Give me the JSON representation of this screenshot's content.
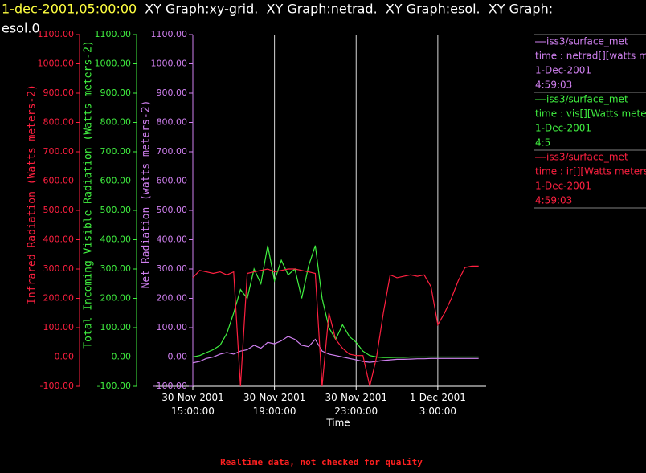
{
  "chart_data": {
    "type": "line",
    "timestamp": "1-dec-2001,05:00:00",
    "title": "XY Graph:xy-grid.  XY Graph:netrad.  XY Graph:esol.  XY Graph:",
    "title_line2": "esol.0",
    "footer": "Realtime data, not checked for quality",
    "x_label": "Time",
    "xlim": [
      "30-Nov-2001 15:00:00",
      "1-Dec-2001 05:22:00"
    ],
    "xticks": [
      "30-Nov-2001 15:00:00",
      "30-Nov-2001 19:00:00",
      "30-Nov-2001 23:00:00",
      "1-Dec-2001 3:00:00"
    ],
    "grid": true,
    "y_axes": [
      {
        "label": "Infrared Radiation (Watts meters-2)",
        "color": "#ff2040",
        "lim": [
          -100,
          1100
        ],
        "ticks": [
          {
            "value": -100,
            "label": "-100.00"
          },
          {
            "value": 0,
            "label": "0.00"
          },
          {
            "value": 100,
            "label": "100.00"
          },
          {
            "value": 200,
            "label": "200.00"
          },
          {
            "value": 300,
            "label": "300.00"
          },
          {
            "value": 400,
            "label": "400.00"
          },
          {
            "value": 500,
            "label": "500.00"
          },
          {
            "value": 600,
            "label": "600.00"
          },
          {
            "value": 700,
            "label": "700.00"
          },
          {
            "value": 800,
            "label": "800.00"
          },
          {
            "value": 900,
            "label": "900.00"
          },
          {
            "value": 1000,
            "label": "1000.00"
          },
          {
            "value": 1100,
            "label": "1100.00"
          }
        ]
      },
      {
        "label": "Total Incoming Visible Radiation (Watts meters-2)",
        "color": "#40f040",
        "lim": [
          -100,
          1100
        ],
        "ticks": [
          {
            "value": -100,
            "label": "-100.00"
          },
          {
            "value": 0,
            "label": "0.00"
          },
          {
            "value": 100,
            "label": "100.00"
          },
          {
            "value": 200,
            "label": "200.00"
          },
          {
            "value": 300,
            "label": "300.00"
          },
          {
            "value": 400,
            "label": "400.00"
          },
          {
            "value": 500,
            "label": "500.00"
          },
          {
            "value": 600,
            "label": "600.00"
          },
          {
            "value": 700,
            "label": "700.00"
          },
          {
            "value": 800,
            "label": "800.00"
          },
          {
            "value": 900,
            "label": "900.00"
          },
          {
            "value": 1000,
            "label": "1000.00"
          },
          {
            "value": 1100,
            "label": "1100.00"
          }
        ]
      },
      {
        "label": "Net Radiation (watts meters-2)",
        "color": "#d080f0",
        "lim": [
          -100,
          1100
        ],
        "ticks": [
          {
            "value": -100,
            "label": "-100.00"
          },
          {
            "value": 0,
            "label": "0.00"
          },
          {
            "value": 100,
            "label": "100.00"
          },
          {
            "value": 200,
            "label": "200.00"
          },
          {
            "value": 300,
            "label": "300.00"
          },
          {
            "value": 400,
            "label": "400.00"
          },
          {
            "value": 500,
            "label": "500.00"
          },
          {
            "value": 600,
            "label": "600.00"
          },
          {
            "value": 700,
            "label": "700.00"
          },
          {
            "value": 800,
            "label": "800.00"
          },
          {
            "value": 900,
            "label": "900.00"
          },
          {
            "value": 1000,
            "label": "1000.00"
          },
          {
            "value": 1100,
            "label": "1100.00"
          }
        ]
      }
    ],
    "x": [
      "30-Nov-2001 15:00",
      "30-Nov-2001 15:20",
      "30-Nov-2001 15:40",
      "30-Nov-2001 16:00",
      "30-Nov-2001 16:20",
      "30-Nov-2001 16:40",
      "30-Nov-2001 17:00",
      "30-Nov-2001 17:20",
      "30-Nov-2001 17:40",
      "30-Nov-2001 18:00",
      "30-Nov-2001 18:20",
      "30-Nov-2001 18:40",
      "30-Nov-2001 19:00",
      "30-Nov-2001 19:20",
      "30-Nov-2001 19:40",
      "30-Nov-2001 20:00",
      "30-Nov-2001 20:20",
      "30-Nov-2001 20:40",
      "30-Nov-2001 21:00",
      "30-Nov-2001 21:20",
      "30-Nov-2001 21:40",
      "30-Nov-2001 22:00",
      "30-Nov-2001 22:20",
      "30-Nov-2001 22:40",
      "30-Nov-2001 23:00",
      "30-Nov-2001 23:20",
      "30-Nov-2001 23:40",
      "1-Dec-2001 0:00",
      "1-Dec-2001 0:20",
      "1-Dec-2001 0:40",
      "1-Dec-2001 1:00",
      "1-Dec-2001 1:20",
      "1-Dec-2001 1:40",
      "1-Dec-2001 2:00",
      "1-Dec-2001 2:20",
      "1-Dec-2001 2:40",
      "1-Dec-2001 3:00",
      "1-Dec-2001 3:20",
      "1-Dec-2001 3:40",
      "1-Dec-2001 4:00",
      "1-Dec-2001 4:20",
      "1-Dec-2001 4:40",
      "1-Dec-2001 5:00"
    ],
    "series": [
      {
        "name": "iss3/surface_met",
        "legend_detail": [
          "time : netrad[][watts me",
          "1-Dec-2001",
          "4:59:03"
        ],
        "color": "#d080f0",
        "axis": 2,
        "values": [
          -20,
          -15,
          -5,
          0,
          10,
          15,
          10,
          20,
          25,
          40,
          30,
          50,
          45,
          55,
          70,
          60,
          40,
          35,
          60,
          20,
          10,
          5,
          0,
          -5,
          -10,
          -15,
          -18,
          -15,
          -12,
          -10,
          -8,
          -8,
          -7,
          -6,
          -6,
          -5,
          -5,
          -5,
          -5,
          -5,
          -5,
          -5,
          -5
        ]
      },
      {
        "name": "iss3/surface_met",
        "legend_detail": [
          "time : vis[][Watts meter",
          "1-Dec-2001",
          "4:5"
        ],
        "color": "#40f040",
        "axis": 1,
        "values": [
          0,
          5,
          15,
          25,
          40,
          80,
          150,
          230,
          200,
          300,
          250,
          380,
          260,
          330,
          280,
          300,
          200,
          310,
          380,
          200,
          100,
          60,
          110,
          70,
          50,
          20,
          5,
          0,
          -2,
          -2,
          -1,
          -1,
          0,
          0,
          0,
          0,
          0,
          0,
          0,
          0,
          0,
          0,
          0
        ]
      },
      {
        "name": "iss3/surface_met",
        "legend_detail": [
          "time : ir[][Watts meters",
          "1-Dec-2001",
          "4:59:03"
        ],
        "color": "#ff2040",
        "axis": 0,
        "values": [
          270,
          295,
          290,
          285,
          290,
          280,
          290,
          -100,
          285,
          290,
          295,
          300,
          290,
          295,
          300,
          300,
          295,
          290,
          285,
          -100,
          150,
          60,
          30,
          10,
          5,
          5,
          -100,
          0,
          150,
          280,
          270,
          275,
          280,
          275,
          280,
          240,
          110,
          150,
          200,
          260,
          305,
          310,
          310
        ]
      }
    ]
  }
}
